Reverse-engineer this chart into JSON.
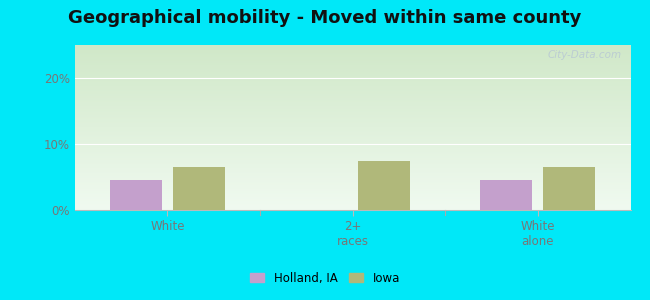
{
  "title": "Geographical mobility - Moved within same county",
  "categories": [
    "White",
    "2+\nraces",
    "White\nalone"
  ],
  "holland_values": [
    4.5,
    0.0,
    4.5
  ],
  "iowa_values": [
    6.5,
    7.5,
    6.5
  ],
  "holland_color": "#c4a0cc",
  "iowa_color": "#b0b87a",
  "ylim": [
    0,
    25
  ],
  "yticks": [
    0,
    10,
    20
  ],
  "ytick_labels": [
    "0%",
    "10%",
    "20%"
  ],
  "background_top_left": "#d0e8c8",
  "background_bottom_right": "#f0faf0",
  "outer_bg": "#00e8f8",
  "bar_width": 0.28,
  "group_positions": [
    1.0,
    2.0,
    3.0
  ],
  "watermark": "City-Data.com",
  "legend_labels": [
    "Holland, IA",
    "Iowa"
  ],
  "title_fontsize": 13,
  "axis_label_fontsize": 8.5
}
